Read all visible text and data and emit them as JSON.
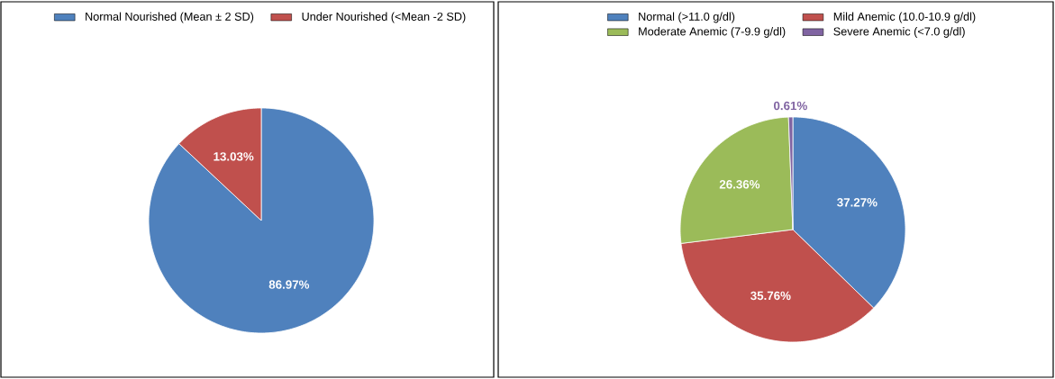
{
  "chart_data": [
    {
      "type": "pie",
      "categories": [
        "Normal Nourished (Mean ± 2 SD)",
        "Under Nourished (<Mean -2 SD)"
      ],
      "values": [
        86.97,
        13.03
      ],
      "colors": [
        "#4f81bd",
        "#c0504d"
      ],
      "value_labels": [
        "86.97%",
        "13.03%"
      ],
      "legend": "top"
    },
    {
      "type": "pie",
      "categories": [
        "Normal (>11.0 g/dl)",
        "Mild Anemic (10.0-10.9 g/dl)",
        "Moderate Anemic (7-9.9 g/dl)",
        "Severe Anemic (<7.0 g/dl)"
      ],
      "values": [
        37.27,
        35.76,
        26.36,
        0.61
      ],
      "colors": [
        "#4f81bd",
        "#c0504d",
        "#9bbb59",
        "#8064a2"
      ],
      "value_labels": [
        "37.27%",
        "35.76%",
        "26.36%",
        "0.61%"
      ],
      "legend": "top"
    }
  ]
}
